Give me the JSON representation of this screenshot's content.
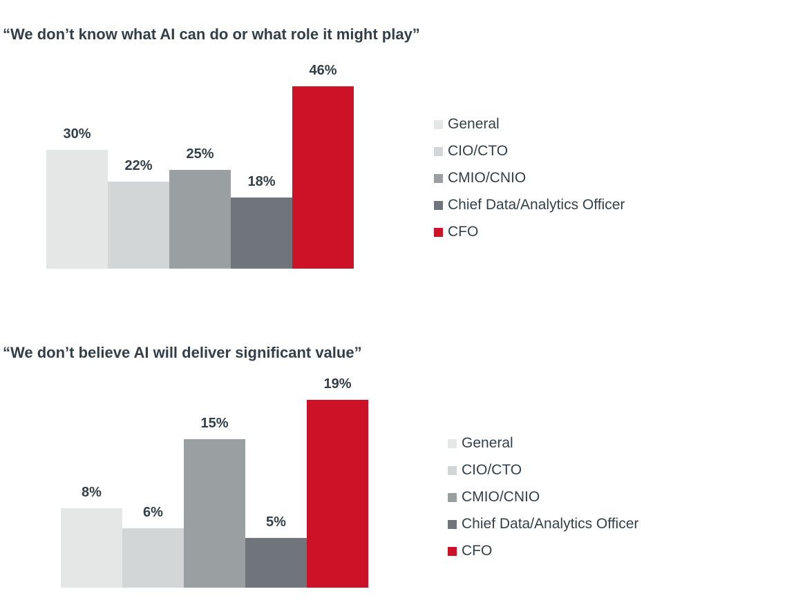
{
  "style": {
    "background": "#FFFFFF",
    "text_color": "#333F48",
    "accent_red": "#CD1127"
  },
  "chart_data": [
    {
      "type": "bar",
      "title": "“We don’t know what AI can do or what role it might play”",
      "categories": [
        "General",
        "CIO/CTO",
        "CMIO/CNIO",
        "Chief Data/Analytics Officer",
        "CFO"
      ],
      "values": [
        30,
        22,
        25,
        18,
        46
      ],
      "value_labels": [
        "30%",
        "22%",
        "25%",
        "18%",
        "46%"
      ],
      "colors": [
        "#E5E6E6",
        "#D3D6D7",
        "#9A9FA2",
        "#6F757B",
        "#CD1127"
      ],
      "xlabel": "",
      "ylabel": "",
      "ylim": [
        0,
        46
      ],
      "grid": false,
      "legend_position": "right"
    },
    {
      "type": "bar",
      "title": "“We don’t believe AI will deliver significant value”",
      "categories": [
        "General",
        "CIO/CTO",
        "CMIO/CNIO",
        "Chief Data/Analytics Officer",
        "CFO"
      ],
      "values": [
        8,
        6,
        15,
        5,
        19
      ],
      "value_labels": [
        "8%",
        "6%",
        "15%",
        "5%",
        "19%"
      ],
      "colors": [
        "#E5E6E6",
        "#D3D6D7",
        "#9A9FA2",
        "#6F757B",
        "#CD1127"
      ],
      "xlabel": "",
      "ylabel": "",
      "ylim": [
        0,
        19
      ],
      "grid": false,
      "legend_position": "right"
    }
  ]
}
